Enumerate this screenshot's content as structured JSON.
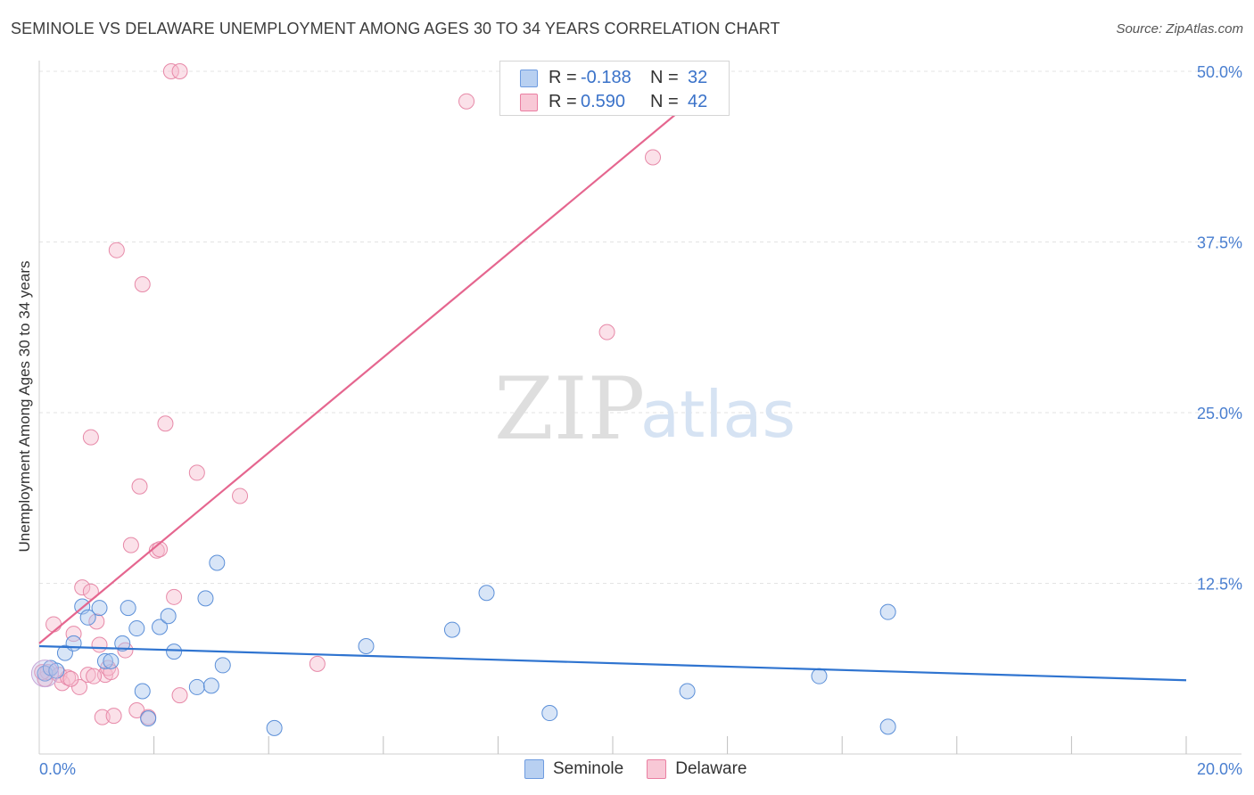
{
  "title": "SEMINOLE VS DELAWARE UNEMPLOYMENT AMONG AGES 30 TO 34 YEARS CORRELATION CHART",
  "source": "Source: ZipAtlas.com",
  "watermark": {
    "zip": "ZIP",
    "atlas": "atlas"
  },
  "colors": {
    "seminole": "#4a86d8",
    "delaware": "#e8799e",
    "seminole_line": "#2f74d0",
    "delaware_line": "#e5668f",
    "tick_label": "#4a7fd0"
  },
  "stats": [
    {
      "series": "Seminole",
      "r_label": "R =",
      "r_value": "-0.188",
      "n_label": "N =",
      "n_value": "32"
    },
    {
      "series": "Delaware",
      "r_label": "R =",
      "r_value": "0.590",
      "n_label": "N =",
      "n_value": "42"
    }
  ],
  "legend": {
    "seminole": "Seminole",
    "delaware": "Delaware"
  },
  "chart_data": {
    "type": "scatter",
    "title": "SEMINOLE VS DELAWARE UNEMPLOYMENT AMONG AGES 30 TO 34 YEARS CORRELATION CHART",
    "xlabel": "",
    "ylabel": "Unemployment Among Ages 30 to 34 years",
    "xlim": [
      0,
      20
    ],
    "ylim": [
      0,
      50
    ],
    "x_tick_labels": [
      {
        "value": 0,
        "label": "0.0%"
      },
      {
        "value": 20,
        "label": "20.0%"
      }
    ],
    "y_tick_labels": [
      {
        "value": 12.5,
        "label": "12.5%"
      },
      {
        "value": 25,
        "label": "25.0%"
      },
      {
        "value": 37.5,
        "label": "37.5%"
      },
      {
        "value": 50,
        "label": "50.0%"
      }
    ],
    "x_minor_ticks": [
      2,
      4,
      6,
      8,
      10,
      12,
      14,
      16,
      18,
      20
    ],
    "series": [
      {
        "name": "Seminole",
        "points": [
          [
            0.1,
            5.9
          ],
          [
            0.2,
            6.3
          ],
          [
            0.3,
            6.1
          ],
          [
            0.45,
            7.4
          ],
          [
            0.6,
            8.1
          ],
          [
            0.75,
            10.8
          ],
          [
            0.85,
            10.0
          ],
          [
            1.05,
            10.7
          ],
          [
            1.15,
            6.8
          ],
          [
            1.25,
            6.8
          ],
          [
            1.45,
            8.1
          ],
          [
            1.55,
            10.7
          ],
          [
            1.7,
            9.2
          ],
          [
            1.8,
            4.6
          ],
          [
            1.9,
            2.6
          ],
          [
            2.1,
            9.3
          ],
          [
            2.25,
            10.1
          ],
          [
            2.35,
            7.5
          ],
          [
            2.75,
            4.9
          ],
          [
            2.9,
            11.4
          ],
          [
            3.0,
            5.0
          ],
          [
            3.2,
            6.5
          ],
          [
            3.1,
            14.0
          ],
          [
            4.1,
            1.9
          ],
          [
            5.7,
            7.9
          ],
          [
            7.2,
            9.1
          ],
          [
            7.8,
            11.8
          ],
          [
            8.9,
            3.0
          ],
          [
            11.3,
            4.6
          ],
          [
            13.6,
            5.7
          ],
          [
            14.8,
            10.4
          ],
          [
            14.8,
            2.0
          ]
        ]
      },
      {
        "name": "Delaware",
        "points": [
          [
            0.1,
            5.5
          ],
          [
            0.15,
            6.0
          ],
          [
            0.25,
            9.5
          ],
          [
            0.35,
            5.8
          ],
          [
            0.4,
            5.2
          ],
          [
            0.5,
            5.6
          ],
          [
            0.6,
            8.8
          ],
          [
            0.7,
            4.9
          ],
          [
            0.75,
            12.2
          ],
          [
            0.85,
            5.8
          ],
          [
            0.9,
            23.2
          ],
          [
            0.9,
            11.9
          ],
          [
            1.0,
            9.7
          ],
          [
            1.05,
            8.0
          ],
          [
            1.1,
            2.7
          ],
          [
            1.15,
            5.8
          ],
          [
            1.2,
            6.3
          ],
          [
            1.3,
            2.8
          ],
          [
            1.35,
            36.9
          ],
          [
            1.5,
            7.6
          ],
          [
            1.6,
            15.3
          ],
          [
            1.7,
            3.2
          ],
          [
            1.75,
            19.6
          ],
          [
            1.8,
            34.4
          ],
          [
            1.9,
            2.7
          ],
          [
            2.05,
            14.9
          ],
          [
            2.1,
            15.0
          ],
          [
            2.2,
            24.2
          ],
          [
            2.35,
            11.5
          ],
          [
            2.45,
            4.3
          ],
          [
            2.3,
            50.0
          ],
          [
            2.45,
            50.0
          ],
          [
            2.75,
            20.6
          ],
          [
            3.5,
            18.9
          ],
          [
            4.85,
            6.6
          ],
          [
            7.45,
            47.8
          ],
          [
            9.9,
            30.9
          ],
          [
            10.7,
            43.7
          ],
          [
            0.05,
            6.0
          ],
          [
            0.55,
            5.5
          ],
          [
            0.95,
            5.7
          ],
          [
            1.25,
            6.0
          ]
        ]
      }
    ],
    "trendlines": [
      {
        "series": "Seminole",
        "x": [
          0,
          20
        ],
        "y": [
          7.9,
          5.4
        ]
      },
      {
        "series": "Delaware",
        "x": [
          0,
          12
        ],
        "y": [
          8.1,
          50.0
        ]
      }
    ]
  }
}
